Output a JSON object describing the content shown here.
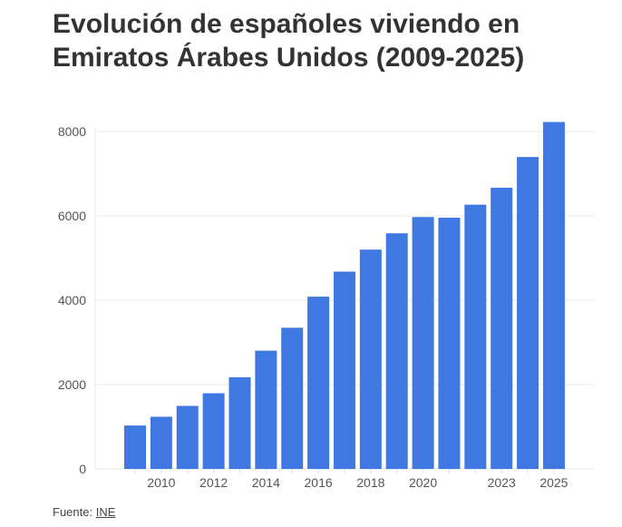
{
  "chart_data": {
    "type": "bar",
    "title": "Evolución de españoles viviendo en Emiratos Árabes Unidos (2009-2025)",
    "xlabel": "",
    "ylabel": "",
    "categories": [
      "2009",
      "2010",
      "2011",
      "2012",
      "2013",
      "2014",
      "2015",
      "2016",
      "2017",
      "2018",
      "2019",
      "2020",
      "2021",
      "2022",
      "2023",
      "2024",
      "2025"
    ],
    "values": [
      1030,
      1237,
      1495,
      1795,
      2175,
      2804,
      3348,
      4084,
      4678,
      5200,
      5587,
      5973,
      5958,
      6266,
      6667,
      7396,
      8226
    ],
    "x_tick_labels": [
      "2010",
      "2012",
      "2014",
      "2016",
      "2018",
      "2020",
      "2023",
      "2025"
    ],
    "y_ticks": [
      0,
      2000,
      4000,
      6000,
      8000
    ],
    "ylim": [
      0,
      8000
    ],
    "grid": true,
    "bar_color": "#3f78e0"
  },
  "source": {
    "label": "Fuente:",
    "link": "INE"
  }
}
